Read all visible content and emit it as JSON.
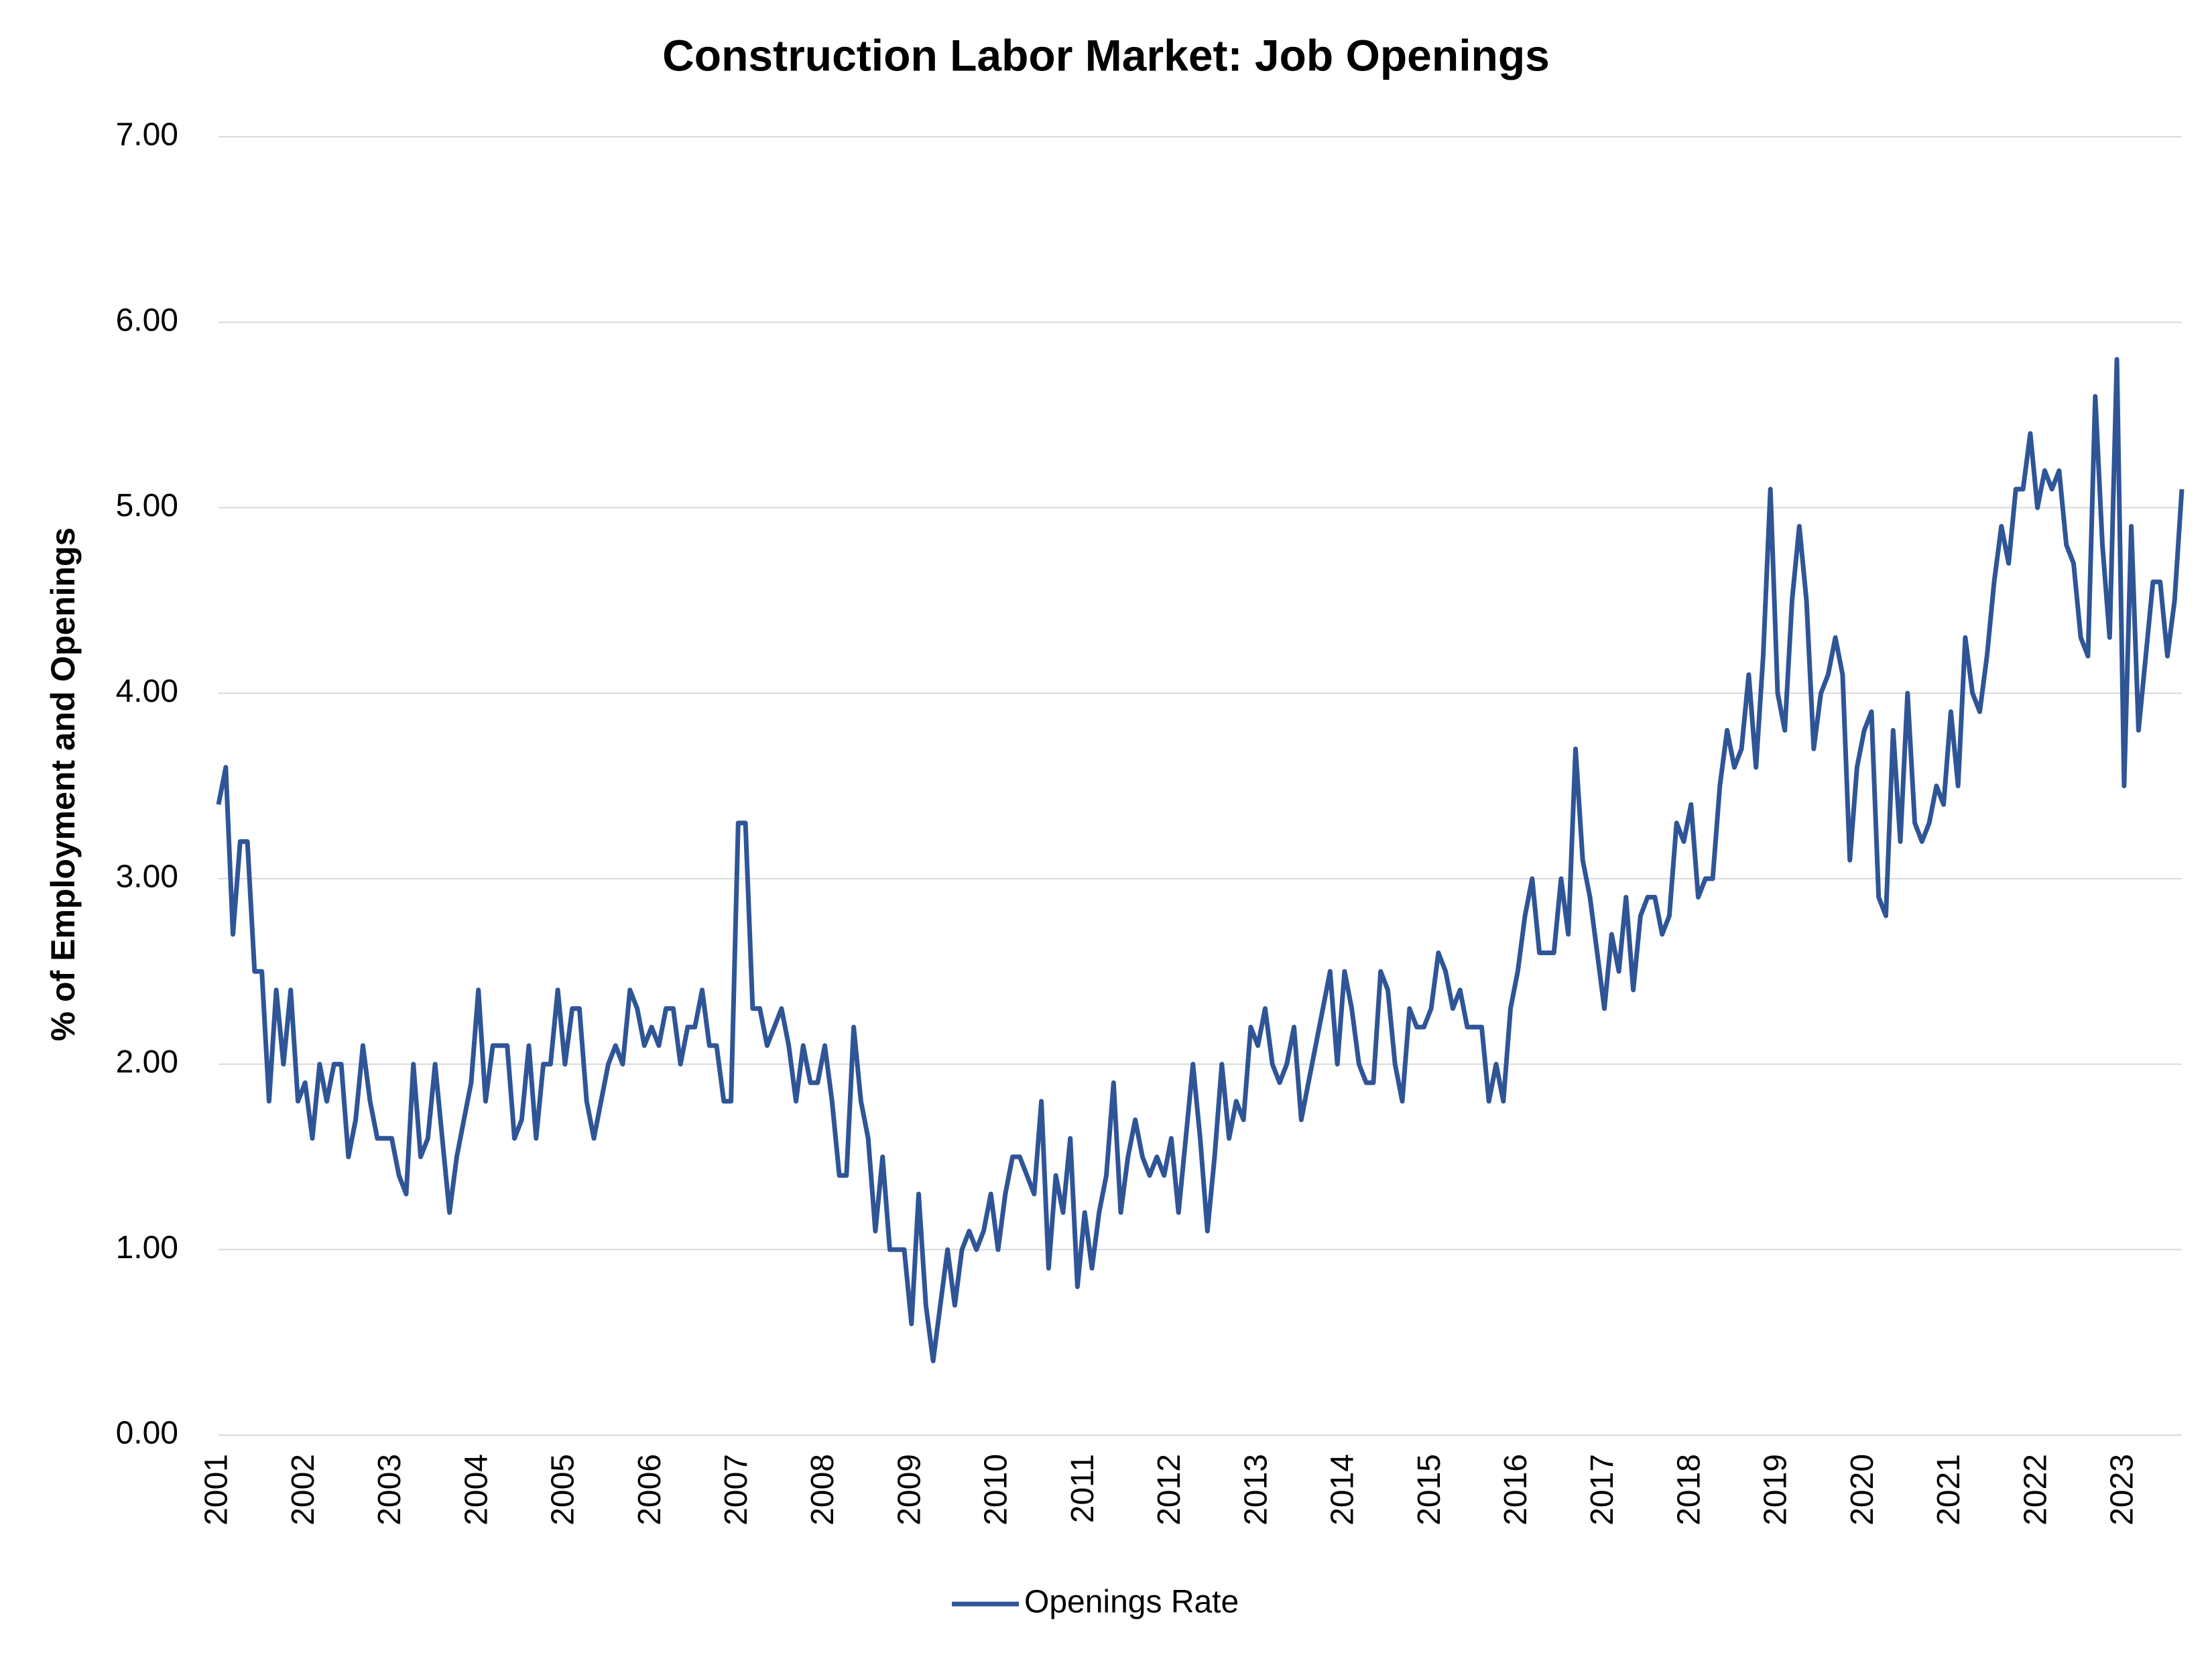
{
  "chart_data": {
    "type": "line",
    "title": "Construction Labor Market: Job Openings",
    "y_label": "% of Employment and Openings",
    "categories": [
      "2001",
      null,
      null,
      null,
      null,
      null,
      null,
      null,
      null,
      null,
      null,
      null,
      "2002",
      null,
      null,
      null,
      null,
      null,
      null,
      null,
      null,
      null,
      null,
      null,
      "2003",
      null,
      null,
      null,
      null,
      null,
      null,
      null,
      null,
      null,
      null,
      null,
      "2004",
      null,
      null,
      null,
      null,
      null,
      null,
      null,
      null,
      null,
      null,
      null,
      "2005",
      null,
      null,
      null,
      null,
      null,
      null,
      null,
      null,
      null,
      null,
      null,
      "2006",
      null,
      null,
      null,
      null,
      null,
      null,
      null,
      null,
      null,
      null,
      null,
      "2007",
      null,
      null,
      null,
      null,
      null,
      null,
      null,
      null,
      null,
      null,
      null,
      "2008",
      null,
      null,
      null,
      null,
      null,
      null,
      null,
      null,
      null,
      null,
      null,
      "2009",
      null,
      null,
      null,
      null,
      null,
      null,
      null,
      null,
      null,
      null,
      null,
      "2010",
      null,
      null,
      null,
      null,
      null,
      null,
      null,
      null,
      null,
      null,
      null,
      "2011",
      null,
      null,
      null,
      null,
      null,
      null,
      null,
      null,
      null,
      null,
      null,
      "2012",
      null,
      null,
      null,
      null,
      null,
      null,
      null,
      null,
      null,
      null,
      null,
      "2013",
      null,
      null,
      null,
      null,
      null,
      null,
      null,
      null,
      null,
      null,
      null,
      "2014",
      null,
      null,
      null,
      null,
      null,
      null,
      null,
      null,
      null,
      null,
      null,
      "2015",
      null,
      null,
      null,
      null,
      null,
      null,
      null,
      null,
      null,
      null,
      null,
      "2016",
      null,
      null,
      null,
      null,
      null,
      null,
      null,
      null,
      null,
      null,
      null,
      "2017",
      null,
      null,
      null,
      null,
      null,
      null,
      null,
      null,
      null,
      null,
      null,
      "2018",
      null,
      null,
      null,
      null,
      null,
      null,
      null,
      null,
      null,
      null,
      null,
      "2019",
      null,
      null,
      null,
      null,
      null,
      null,
      null,
      null,
      null,
      null,
      null,
      "2020",
      null,
      null,
      null,
      null,
      null,
      null,
      null,
      null,
      null,
      null,
      null,
      "2021",
      null,
      null,
      null,
      null,
      null,
      null,
      null,
      null,
      null,
      null,
      null,
      "2022",
      null,
      null,
      null,
      null,
      null,
      null,
      null,
      null,
      null,
      null,
      null,
      "2023",
      null,
      null,
      null,
      null,
      null,
      null,
      null,
      null
    ],
    "series": [
      {
        "name": "Openings Rate",
        "color": "#2f5597",
        "values": [
          3.4,
          3.6,
          2.7,
          3.2,
          3.2,
          2.5,
          2.5,
          1.8,
          2.4,
          2.0,
          2.4,
          1.8,
          1.9,
          1.6,
          2.0,
          1.8,
          2.0,
          2.0,
          1.5,
          1.7,
          2.1,
          1.8,
          1.6,
          1.6,
          1.6,
          1.4,
          1.3,
          2.0,
          1.5,
          1.6,
          2.0,
          1.6,
          1.2,
          1.5,
          1.7,
          1.9,
          2.4,
          1.8,
          2.1,
          2.1,
          2.1,
          1.6,
          1.7,
          2.1,
          1.6,
          2.0,
          2.0,
          2.4,
          2.0,
          2.3,
          2.3,
          1.8,
          1.6,
          1.8,
          2.0,
          2.1,
          2.0,
          2.4,
          2.3,
          2.1,
          2.2,
          2.1,
          2.3,
          2.3,
          2.0,
          2.2,
          2.2,
          2.4,
          2.1,
          2.1,
          1.8,
          1.8,
          3.3,
          3.3,
          2.3,
          2.3,
          2.1,
          2.2,
          2.3,
          2.1,
          1.8,
          2.1,
          1.9,
          1.9,
          2.1,
          1.8,
          1.4,
          1.4,
          2.2,
          1.8,
          1.6,
          1.1,
          1.5,
          1.0,
          1.0,
          1.0,
          0.6,
          1.3,
          0.7,
          0.4,
          0.7,
          1.0,
          0.7,
          1.0,
          1.1,
          1.0,
          1.1,
          1.3,
          1.0,
          1.3,
          1.5,
          1.5,
          1.4,
          1.3,
          1.8,
          0.9,
          1.4,
          1.2,
          1.6,
          0.8,
          1.2,
          0.9,
          1.2,
          1.4,
          1.9,
          1.2,
          1.5,
          1.7,
          1.5,
          1.4,
          1.5,
          1.4,
          1.6,
          1.2,
          1.6,
          2.0,
          1.6,
          1.1,
          1.5,
          2.0,
          1.6,
          1.8,
          1.7,
          2.2,
          2.1,
          2.3,
          2.0,
          1.9,
          2.0,
          2.2,
          1.7,
          1.9,
          2.1,
          2.3,
          2.5,
          2.0,
          2.5,
          2.3,
          2.0,
          1.9,
          1.9,
          2.5,
          2.4,
          2.0,
          1.8,
          2.3,
          2.2,
          2.2,
          2.3,
          2.6,
          2.5,
          2.3,
          2.4,
          2.2,
          2.2,
          2.2,
          1.8,
          2.0,
          1.8,
          2.3,
          2.5,
          2.8,
          3.0,
          2.6,
          2.6,
          2.6,
          3.0,
          2.7,
          3.7,
          3.1,
          2.9,
          2.6,
          2.3,
          2.7,
          2.5,
          2.9,
          2.4,
          2.8,
          2.9,
          2.9,
          2.7,
          2.8,
          3.3,
          3.2,
          3.4,
          2.9,
          3.0,
          3.0,
          3.5,
          3.8,
          3.6,
          3.7,
          4.1,
          3.6,
          4.2,
          5.1,
          4.0,
          3.8,
          4.5,
          4.9,
          4.5,
          3.7,
          4.0,
          4.1,
          4.3,
          4.1,
          3.1,
          3.6,
          3.8,
          3.9,
          2.9,
          2.8,
          3.8,
          3.2,
          4.0,
          3.3,
          3.2,
          3.3,
          3.5,
          3.4,
          3.9,
          3.5,
          4.3,
          4.0,
          3.9,
          4.2,
          4.6,
          4.9,
          4.7,
          5.1,
          5.1,
          5.4,
          5.0,
          5.2,
          5.1,
          5.2,
          4.8,
          4.7,
          4.3,
          4.2,
          5.6,
          4.8,
          4.3,
          5.8,
          3.5,
          4.9,
          3.8,
          4.2,
          4.6,
          4.6,
          4.2,
          4.5,
          5.1
        ]
      }
    ],
    "ylim": [
      0,
      7
    ],
    "yticks": [
      {
        "value": 0,
        "label": "0.00"
      },
      {
        "value": 1,
        "label": "1.00"
      },
      {
        "value": 2,
        "label": "2.00"
      },
      {
        "value": 3,
        "label": "3.00"
      },
      {
        "value": 4,
        "label": "4.00"
      },
      {
        "value": 5,
        "label": "5.00"
      },
      {
        "value": 6,
        "label": "6.00"
      },
      {
        "value": 7,
        "label": "7.00"
      }
    ],
    "grid": true,
    "legend": "bottom"
  }
}
